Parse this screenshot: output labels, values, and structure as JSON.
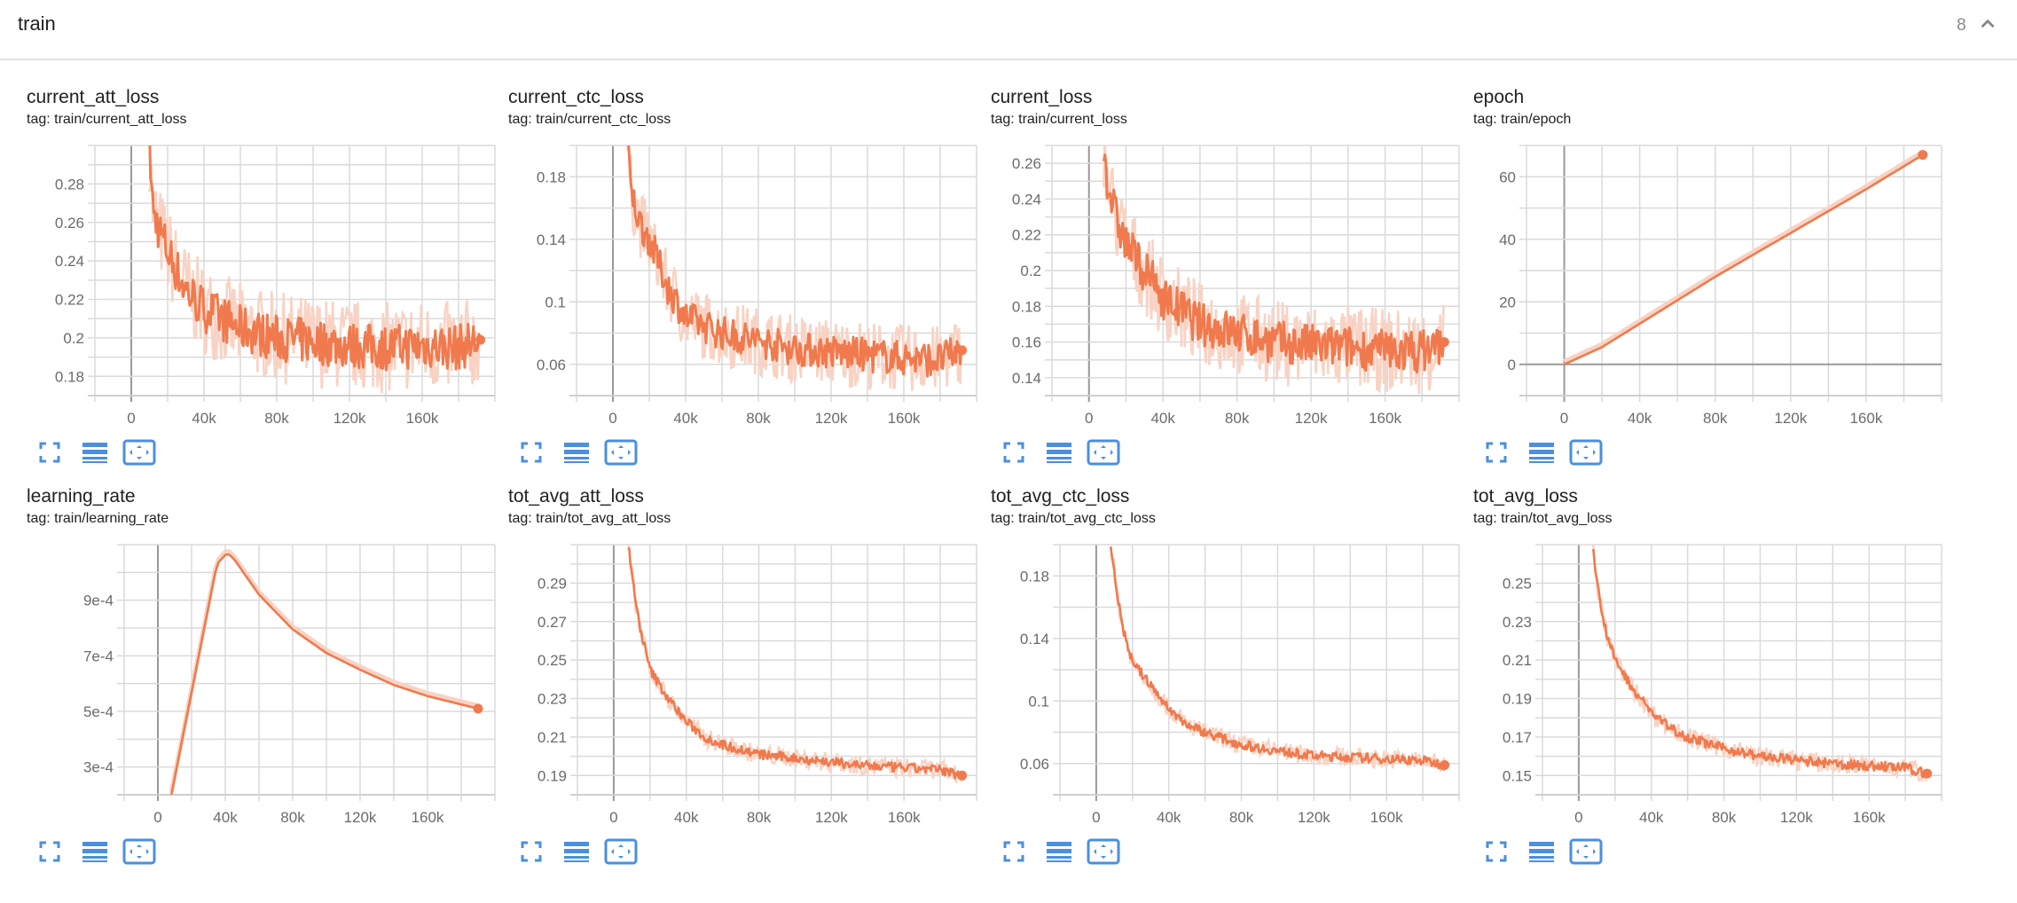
{
  "header": {
    "title": "train",
    "count": "8",
    "collapse_icon": "chevron-up-icon"
  },
  "colors": {
    "series": "#f07a4d",
    "series_raw": "#f8d3c4",
    "grid": "#dadada",
    "axis_zero": "#999999",
    "icon": "#4a8fe0"
  },
  "card_icons": [
    "fullscreen-icon",
    "toggle-log-scale-icon",
    "fit-domain-icon"
  ],
  "chart_data": [
    {
      "type": "line",
      "title": "current_att_loss",
      "tag": "tag: train/current_att_loss",
      "xlim": [
        -20000,
        200000
      ],
      "ylim": [
        0.17,
        0.3
      ],
      "x_tick_values": [
        0,
        40000,
        80000,
        120000,
        160000
      ],
      "x_ticks": [
        "0",
        "40k",
        "80k",
        "120k",
        "160k"
      ],
      "y_ticks": [
        "0.18",
        "0.2",
        "0.22",
        "0.24",
        "0.26",
        "0.28"
      ],
      "grid": true,
      "noise": 0.012,
      "x": [
        10000,
        12000,
        20000,
        30000,
        40000,
        60000,
        80000,
        100000,
        120000,
        140000,
        160000,
        180000,
        192000
      ],
      "y": [
        0.3,
        0.265,
        0.245,
        0.225,
        0.215,
        0.205,
        0.2,
        0.198,
        0.196,
        0.195,
        0.196,
        0.195,
        0.199
      ]
    },
    {
      "type": "line",
      "title": "current_ctc_loss",
      "tag": "tag: train/current_ctc_loss",
      "xlim": [
        -20000,
        200000
      ],
      "ylim": [
        0.04,
        0.2
      ],
      "x_tick_values": [
        0,
        40000,
        80000,
        120000,
        160000
      ],
      "x_ticks": [
        "0",
        "40k",
        "80k",
        "120k",
        "160k"
      ],
      "y_ticks": [
        "0.06",
        "0.1",
        "0.14",
        "0.18"
      ],
      "grid": true,
      "noise": 0.011,
      "x": [
        8000,
        10000,
        15000,
        20000,
        30000,
        40000,
        60000,
        80000,
        100000,
        120000,
        140000,
        160000,
        180000,
        192000
      ],
      "y": [
        0.2,
        0.17,
        0.15,
        0.14,
        0.11,
        0.09,
        0.08,
        0.075,
        0.07,
        0.068,
        0.066,
        0.064,
        0.063,
        0.069
      ]
    },
    {
      "type": "line",
      "title": "current_loss",
      "tag": "tag: train/current_loss",
      "xlim": [
        -20000,
        200000
      ],
      "ylim": [
        0.13,
        0.27
      ],
      "x_tick_values": [
        0,
        40000,
        80000,
        120000,
        160000
      ],
      "x_ticks": [
        "0",
        "40k",
        "80k",
        "120k",
        "160k"
      ],
      "y_ticks": [
        "0.14",
        "0.16",
        "0.18",
        "0.2",
        "0.22",
        "0.24",
        "0.26"
      ],
      "grid": true,
      "noise": 0.012,
      "x": [
        8000,
        10000,
        15000,
        20000,
        30000,
        40000,
        60000,
        80000,
        100000,
        120000,
        140000,
        160000,
        180000,
        192000
      ],
      "y": [
        0.27,
        0.25,
        0.228,
        0.215,
        0.2,
        0.185,
        0.17,
        0.165,
        0.16,
        0.158,
        0.157,
        0.155,
        0.155,
        0.16
      ]
    },
    {
      "type": "line",
      "title": "epoch",
      "tag": "tag: train/epoch",
      "xlim": [
        -20000,
        200000
      ],
      "ylim": [
        -10,
        70
      ],
      "x_tick_values": [
        0,
        40000,
        80000,
        120000,
        160000
      ],
      "x_ticks": [
        "0",
        "40k",
        "80k",
        "120k",
        "160k"
      ],
      "y_ticks": [
        "0",
        "20",
        "40",
        "60"
      ],
      "grid": true,
      "noise": 0,
      "x": [
        0,
        20000,
        40000,
        80000,
        120000,
        160000,
        190000
      ],
      "y": [
        0,
        5.5,
        13,
        28,
        42,
        56,
        67
      ]
    },
    {
      "type": "line",
      "title": "learning_rate",
      "tag": "tag: train/learning_rate",
      "xlim": [
        -20000,
        200000
      ],
      "ylim": [
        0.0002,
        0.0011
      ],
      "x_tick_values": [
        0,
        40000,
        80000,
        120000,
        160000
      ],
      "x_ticks": [
        "0",
        "40k",
        "80k",
        "120k",
        "160k"
      ],
      "y_ticks": [
        "3e-4",
        "5e-4",
        "7e-4",
        "9e-4"
      ],
      "grid": true,
      "noise": 0,
      "x": [
        8000,
        35000,
        41000,
        45000,
        60000,
        80000,
        100000,
        120000,
        140000,
        160000,
        190000
      ],
      "y": [
        0.0002,
        0.00103,
        0.00107,
        0.00105,
        0.00092,
        0.000795,
        0.00071,
        0.00065,
        0.000595,
        0.000555,
        0.00051
      ]
    },
    {
      "type": "line",
      "title": "tot_avg_att_loss",
      "tag": "tag: train/tot_avg_att_loss",
      "xlim": [
        -20000,
        200000
      ],
      "ylim": [
        0.18,
        0.31
      ],
      "x_tick_values": [
        0,
        40000,
        80000,
        120000,
        160000
      ],
      "x_ticks": [
        "0",
        "40k",
        "80k",
        "120k",
        "160k"
      ],
      "y_ticks": [
        "0.19",
        "0.21",
        "0.23",
        "0.25",
        "0.27",
        "0.29"
      ],
      "grid": true,
      "noise": 0.0025,
      "x": [
        8000,
        12000,
        15000,
        20000,
        30000,
        40000,
        50000,
        60000,
        80000,
        100000,
        120000,
        140000,
        160000,
        180000,
        192000
      ],
      "y": [
        0.31,
        0.28,
        0.265,
        0.245,
        0.23,
        0.218,
        0.21,
        0.206,
        0.201,
        0.199,
        0.197,
        0.195,
        0.194,
        0.193,
        0.19
      ]
    },
    {
      "type": "line",
      "title": "tot_avg_ctc_loss",
      "tag": "tag: train/tot_avg_ctc_loss",
      "xlim": [
        -20000,
        200000
      ],
      "ylim": [
        0.04,
        0.2
      ],
      "x_tick_values": [
        0,
        40000,
        80000,
        120000,
        160000
      ],
      "x_ticks": [
        "0",
        "40k",
        "80k",
        "120k",
        "160k"
      ],
      "y_ticks": [
        "0.06",
        "0.1",
        "0.14",
        "0.18"
      ],
      "grid": true,
      "noise": 0.003,
      "x": [
        8000,
        12000,
        15000,
        20000,
        30000,
        40000,
        50000,
        60000,
        80000,
        100000,
        120000,
        140000,
        160000,
        180000,
        192000
      ],
      "y": [
        0.2,
        0.165,
        0.145,
        0.125,
        0.11,
        0.095,
        0.085,
        0.08,
        0.072,
        0.068,
        0.065,
        0.064,
        0.063,
        0.062,
        0.059
      ]
    },
    {
      "type": "line",
      "title": "tot_avg_loss",
      "tag": "tag: train/tot_avg_loss",
      "xlim": [
        -20000,
        200000
      ],
      "ylim": [
        0.14,
        0.27
      ],
      "x_tick_values": [
        0,
        40000,
        80000,
        120000,
        160000
      ],
      "x_ticks": [
        "0",
        "40k",
        "80k",
        "120k",
        "160k"
      ],
      "y_ticks": [
        "0.15",
        "0.17",
        "0.19",
        "0.21",
        "0.23",
        "0.25"
      ],
      "grid": true,
      "noise": 0.0025,
      "x": [
        8000,
        10000,
        15000,
        20000,
        30000,
        40000,
        50000,
        60000,
        80000,
        100000,
        120000,
        140000,
        160000,
        180000,
        192000
      ],
      "y": [
        0.27,
        0.25,
        0.225,
        0.21,
        0.195,
        0.183,
        0.175,
        0.17,
        0.164,
        0.16,
        0.158,
        0.156,
        0.155,
        0.154,
        0.151
      ]
    }
  ]
}
